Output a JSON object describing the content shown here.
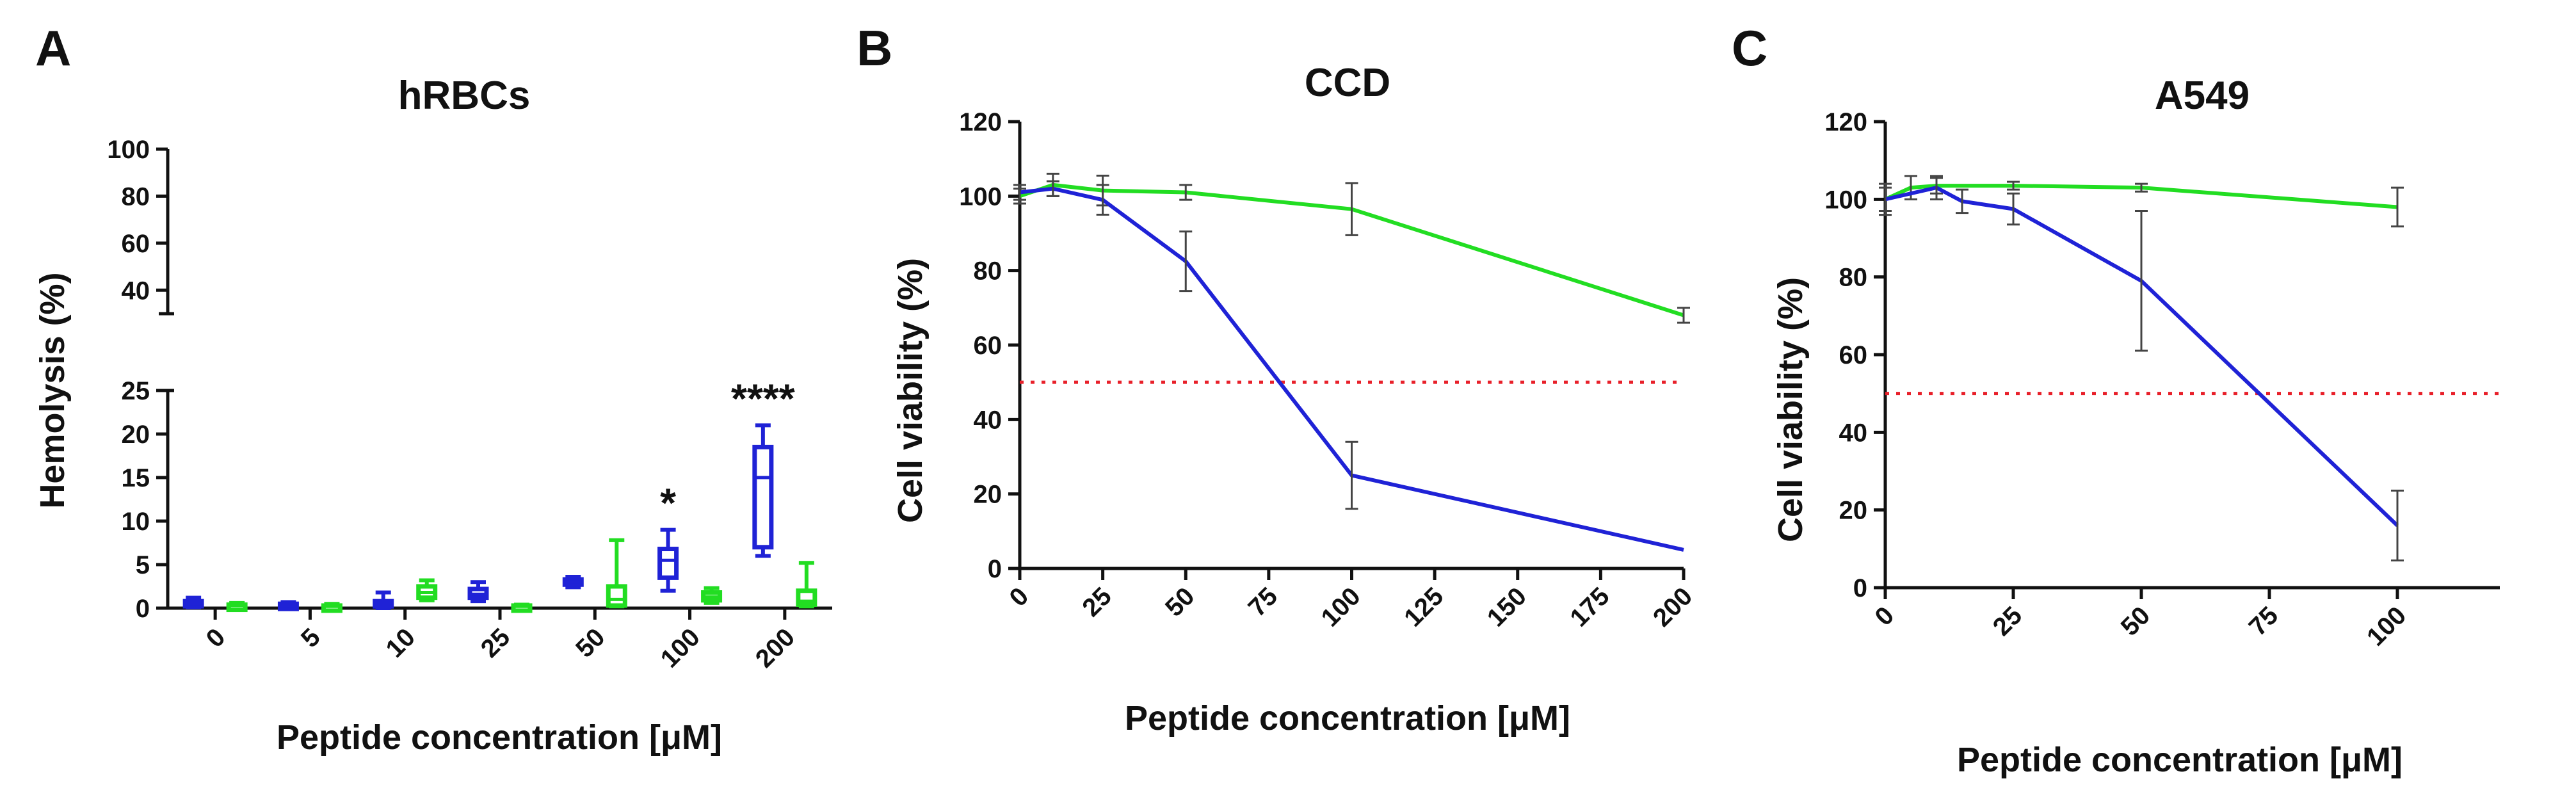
{
  "panels": [
    {
      "letter": "A",
      "title": "hRBCs"
    },
    {
      "letter": "B",
      "title": "CCD"
    },
    {
      "letter": "C",
      "title": "A549"
    }
  ],
  "colors": {
    "series_blue": "#1f22d6",
    "series_green": "#22dd22",
    "threshold": "#e8202a",
    "axis": "#111111",
    "error": "#444444"
  },
  "chart_data": [
    {
      "panel": "A",
      "type": "box",
      "title": "hRBCs",
      "xlabel": "Peptide concentration [μM]",
      "ylabel": "Hemolysis (%)",
      "categories": [
        "0",
        "5",
        "10",
        "25",
        "50",
        "100",
        "200"
      ],
      "y_lower_ticks": [
        0,
        5,
        10,
        15,
        20,
        25
      ],
      "y_upper_ticks": [
        40,
        60,
        80,
        100
      ],
      "y_break": [
        25,
        30
      ],
      "ylim": [
        0,
        100
      ],
      "series": [
        {
          "name": "blue",
          "color": "#1f22d6",
          "boxes": [
            {
              "min": 0.1,
              "q1": 0.3,
              "median": 0.5,
              "q3": 0.8,
              "max": 1.2
            },
            {
              "min": 0.1,
              "q1": 0.2,
              "median": 0.3,
              "q3": 0.5,
              "max": 0.7
            },
            {
              "min": 0.0,
              "q1": 0.2,
              "median": 0.4,
              "q3": 0.8,
              "max": 1.8
            },
            {
              "min": 0.8,
              "q1": 1.2,
              "median": 1.6,
              "q3": 2.2,
              "max": 3.0
            },
            {
              "min": 2.4,
              "q1": 2.7,
              "median": 3.0,
              "q3": 3.3,
              "max": 3.6
            },
            {
              "min": 2.0,
              "q1": 3.5,
              "median": 5.5,
              "q3": 6.8,
              "max": 9.0
            },
            {
              "min": 6.0,
              "q1": 7.0,
              "median": 15.0,
              "q3": 18.5,
              "max": 21.0
            }
          ]
        },
        {
          "name": "green",
          "color": "#22dd22",
          "boxes": [
            {
              "min": 0.1,
              "q1": 0.2,
              "median": 0.3,
              "q3": 0.4,
              "max": 0.6
            },
            {
              "min": 0.0,
              "q1": 0.1,
              "median": 0.2,
              "q3": 0.3,
              "max": 0.5
            },
            {
              "min": 0.9,
              "q1": 1.2,
              "median": 1.8,
              "q3": 2.5,
              "max": 3.2
            },
            {
              "min": 0.0,
              "q1": 0.1,
              "median": 0.2,
              "q3": 0.3,
              "max": 0.4
            },
            {
              "min": 0.2,
              "q1": 0.3,
              "median": 1.0,
              "q3": 2.5,
              "max": 7.8
            },
            {
              "min": 0.6,
              "q1": 0.9,
              "median": 1.3,
              "q3": 1.8,
              "max": 2.3
            },
            {
              "min": 0.2,
              "q1": 0.4,
              "median": 0.8,
              "q3": 2.0,
              "max": 5.2
            }
          ]
        }
      ],
      "annotations": [
        {
          "category": "100",
          "text": "*"
        },
        {
          "category": "200",
          "text": "****"
        }
      ]
    },
    {
      "panel": "B",
      "type": "line",
      "title": "CCD",
      "xlabel": "Peptide concentration  [μM]",
      "ylabel": "Cell viability (%)",
      "x_ticks": [
        0,
        25,
        50,
        75,
        100,
        125,
        150,
        175,
        200
      ],
      "y_ticks": [
        0,
        20,
        40,
        60,
        80,
        100,
        120
      ],
      "xlim": [
        0,
        200
      ],
      "ylim": [
        0,
        120
      ],
      "threshold": 50,
      "series": [
        {
          "name": "green",
          "color": "#22dd22",
          "x": [
            0,
            10,
            25,
            50,
            100,
            200
          ],
          "y": [
            100,
            103,
            101.5,
            101,
            96.5,
            68
          ],
          "err": [
            2,
            3,
            4,
            2,
            7,
            2
          ]
        },
        {
          "name": "blue",
          "color": "#1f22d6",
          "x": [
            0,
            10,
            25,
            50,
            100,
            200
          ],
          "y": [
            101,
            102,
            99,
            82.5,
            25,
            5
          ],
          "err": [
            2,
            2,
            4,
            8,
            9,
            0
          ]
        }
      ]
    },
    {
      "panel": "C",
      "type": "line",
      "title": "A549",
      "xlabel": "Peptide concentration  [μM]",
      "ylabel": "Cell viability (%)",
      "x_ticks": [
        0,
        25,
        50,
        75,
        100
      ],
      "y_ticks": [
        0,
        20,
        40,
        60,
        80,
        100,
        120
      ],
      "xlim": [
        0,
        120
      ],
      "ylim": [
        0,
        120
      ],
      "threshold": 50,
      "series": [
        {
          "name": "green",
          "color": "#22dd22",
          "x": [
            0,
            5,
            10,
            25,
            50,
            100
          ],
          "y": [
            100,
            103,
            103.5,
            103.5,
            103,
            98
          ],
          "err": [
            3,
            3,
            2,
            1,
            1,
            5
          ]
        },
        {
          "name": "blue",
          "color": "#1f22d6",
          "x": [
            0,
            10,
            15,
            25,
            50,
            100
          ],
          "y": [
            100,
            103,
            99.5,
            97.5,
            79,
            16
          ],
          "err": [
            4,
            3,
            3,
            4,
            18,
            9
          ]
        }
      ]
    }
  ]
}
